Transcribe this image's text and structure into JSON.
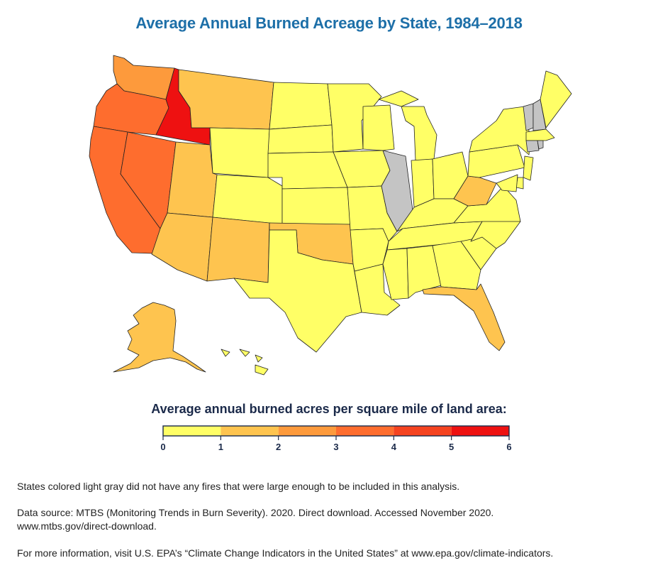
{
  "title": "Average Annual Burned Acreage by State, 1984–2018",
  "legend": {
    "title": "Average annual burned acres per square mile of land area:",
    "ticks": [
      "0",
      "1",
      "2",
      "3",
      "4",
      "5",
      "6"
    ],
    "bins": [
      {
        "range": [
          0,
          1
        ],
        "color": "#ffff66"
      },
      {
        "range": [
          1,
          2
        ],
        "color": "#fec44f"
      },
      {
        "range": [
          2,
          3
        ],
        "color": "#fd9a3c"
      },
      {
        "range": [
          3,
          4
        ],
        "color": "#fe6d2e"
      },
      {
        "range": [
          4,
          5
        ],
        "color": "#f54320"
      },
      {
        "range": [
          5,
          6
        ],
        "color": "#ee1111"
      }
    ],
    "no_data_color": "#c4c4c4"
  },
  "notes": {
    "gray": "States colored light gray did not have any fires that were large enough to be included in this analysis.",
    "source_line1": "Data source: MTBS (Monitoring Trends in Burn Severity). 2020. Direct download. Accessed November 2020.",
    "source_line2": "www.mtbs.gov/direct-download.",
    "more_info": "For more information, visit U.S. EPA’s “Climate Change Indicators in the United States” at www.epa.gov/climate-indicators."
  },
  "map_data": {
    "states": [
      {
        "name": "WA",
        "bin": 3
      },
      {
        "name": "OR",
        "bin": 4
      },
      {
        "name": "ID",
        "bin": 6
      },
      {
        "name": "CA",
        "bin": 4
      },
      {
        "name": "NV",
        "bin": 4
      },
      {
        "name": "MT",
        "bin": 2
      },
      {
        "name": "WY",
        "bin": 1
      },
      {
        "name": "UT",
        "bin": 2
      },
      {
        "name": "AZ",
        "bin": 2
      },
      {
        "name": "CO",
        "bin": 1
      },
      {
        "name": "NM",
        "bin": 2
      },
      {
        "name": "ND",
        "bin": 1
      },
      {
        "name": "SD",
        "bin": 1
      },
      {
        "name": "NE",
        "bin": 1
      },
      {
        "name": "KS",
        "bin": 1
      },
      {
        "name": "OK",
        "bin": 2
      },
      {
        "name": "TX",
        "bin": 1
      },
      {
        "name": "MN",
        "bin": 1
      },
      {
        "name": "IA",
        "bin": 1
      },
      {
        "name": "MO",
        "bin": 1
      },
      {
        "name": "AR",
        "bin": 1
      },
      {
        "name": "LA",
        "bin": 1
      },
      {
        "name": "WI",
        "bin": 1
      },
      {
        "name": "IL",
        "bin": 0
      },
      {
        "name": "MI",
        "bin": 1
      },
      {
        "name": "IN",
        "bin": 1
      },
      {
        "name": "OH",
        "bin": 1
      },
      {
        "name": "KY",
        "bin": 1
      },
      {
        "name": "TN",
        "bin": 1
      },
      {
        "name": "MS",
        "bin": 1
      },
      {
        "name": "AL",
        "bin": 1
      },
      {
        "name": "GA",
        "bin": 1
      },
      {
        "name": "FL",
        "bin": 2
      },
      {
        "name": "SC",
        "bin": 1
      },
      {
        "name": "NC",
        "bin": 1
      },
      {
        "name": "VA",
        "bin": 1
      },
      {
        "name": "WV",
        "bin": 2
      },
      {
        "name": "PA",
        "bin": 1
      },
      {
        "name": "NY",
        "bin": 1
      },
      {
        "name": "VT",
        "bin": 0
      },
      {
        "name": "NH",
        "bin": 0
      },
      {
        "name": "ME",
        "bin": 1
      },
      {
        "name": "MA",
        "bin": 1
      },
      {
        "name": "CT",
        "bin": 0
      },
      {
        "name": "RI",
        "bin": 0
      },
      {
        "name": "NJ",
        "bin": 1
      },
      {
        "name": "DE",
        "bin": 1
      },
      {
        "name": "MD",
        "bin": 1
      },
      {
        "name": "AK",
        "bin": 2
      },
      {
        "name": "HI",
        "bin": 1
      }
    ]
  }
}
